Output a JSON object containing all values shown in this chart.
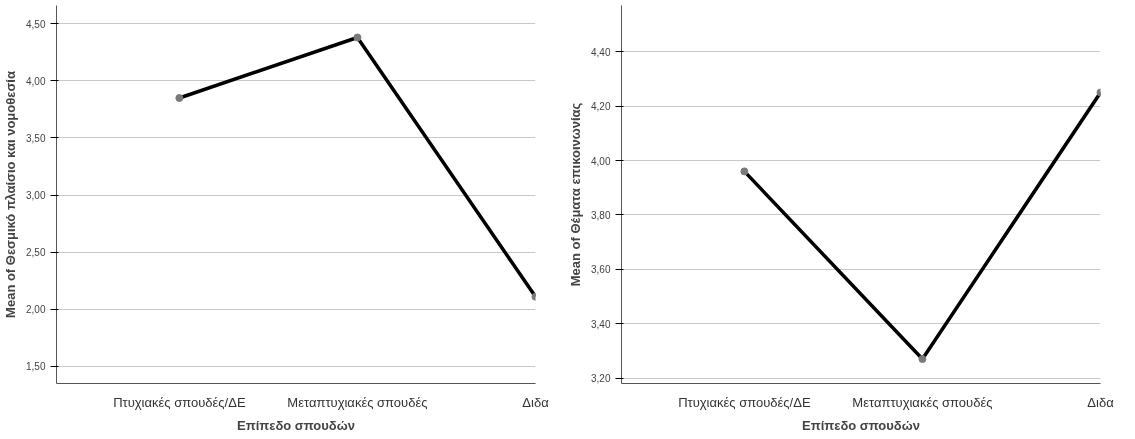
{
  "chart_data": [
    {
      "type": "line",
      "xlabel": "Επίπεδο σπουδών",
      "ylabel": "Mean of Θεσμικό πλαίσιο και νομοθεσία",
      "categories": [
        "Πτυχιακές σπουδές/ΔΕ",
        "Μεταπτυχιακές σπουδές",
        "Διδα"
      ],
      "series": [
        {
          "color": "#000000",
          "values": [
            3.85,
            4.38,
            2.11
          ]
        }
      ],
      "ylim": [
        1.35,
        4.66
      ],
      "yticks": [
        {
          "value": 1.5,
          "label": "1,50"
        },
        {
          "value": 2.0,
          "label": "2,00"
        },
        {
          "value": 2.5,
          "label": "2,50"
        },
        {
          "value": 3.0,
          "label": "3,00"
        },
        {
          "value": 3.5,
          "label": "3,50"
        },
        {
          "value": 4.0,
          "label": "4,00"
        },
        {
          "value": 4.5,
          "label": "4,50"
        }
      ],
      "grid": "y",
      "marker": "circle",
      "line_style": "solid"
    },
    {
      "type": "line",
      "xlabel": "Επίπεδο σπουδών",
      "ylabel": "Mean of Θέματα επικοινωνίας",
      "categories": [
        "Πτυχιακές σπουδές/ΔΕ",
        "Μεταπτυχιακές σπουδές",
        "Διδα"
      ],
      "series": [
        {
          "color": "#000000",
          "values": [
            3.96,
            3.27,
            4.25
          ]
        }
      ],
      "ylim": [
        3.18,
        4.57
      ],
      "yticks": [
        {
          "value": 3.2,
          "label": "3,20"
        },
        {
          "value": 3.4,
          "label": "3,40"
        },
        {
          "value": 3.6,
          "label": "3,60"
        },
        {
          "value": 3.8,
          "label": "3,80"
        },
        {
          "value": 4.0,
          "label": "4,00"
        },
        {
          "value": 4.2,
          "label": "4,20"
        },
        {
          "value": 4.4,
          "label": "4,40"
        }
      ],
      "grid": "y",
      "marker": "circle",
      "line_style": "solid"
    }
  ]
}
